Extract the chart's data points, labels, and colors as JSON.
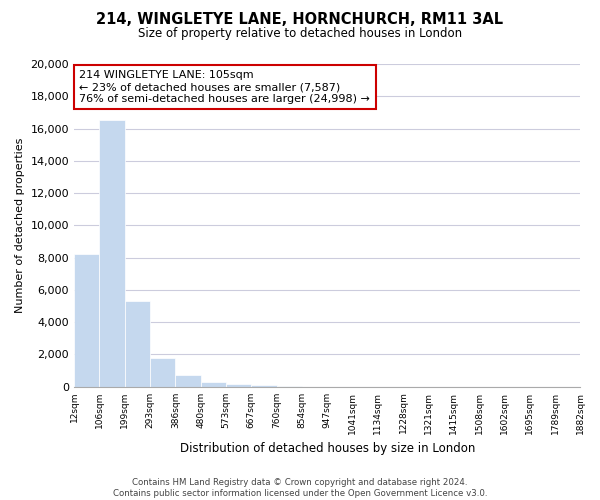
{
  "title": "214, WINGLETYE LANE, HORNCHURCH, RM11 3AL",
  "subtitle": "Size of property relative to detached houses in London",
  "xlabel": "Distribution of detached houses by size in London",
  "ylabel": "Number of detached properties",
  "bar_values": [
    8200,
    16500,
    5300,
    1750,
    750,
    280,
    150,
    100,
    50,
    0,
    0,
    0,
    0,
    0,
    0,
    0,
    0,
    0,
    0,
    0
  ],
  "bin_labels": [
    "12sqm",
    "106sqm",
    "199sqm",
    "293sqm",
    "386sqm",
    "480sqm",
    "573sqm",
    "667sqm",
    "760sqm",
    "854sqm",
    "947sqm",
    "1041sqm",
    "1134sqm",
    "1228sqm",
    "1321sqm",
    "1415sqm",
    "1508sqm",
    "1602sqm",
    "1695sqm",
    "1789sqm",
    "1882sqm"
  ],
  "bar_color": "#c5d8ee",
  "highlight_bar_index": 1,
  "highlight_color_edge": "#dd0000",
  "annotation_box_text": "214 WINGLETYE LANE: 105sqm\n← 23% of detached houses are smaller (7,587)\n76% of semi-detached houses are larger (24,998) →",
  "annotation_box_facecolor": "white",
  "annotation_box_edgecolor": "#cc0000",
  "ylim": [
    0,
    20000
  ],
  "yticks": [
    0,
    2000,
    4000,
    6000,
    8000,
    10000,
    12000,
    14000,
    16000,
    18000,
    20000
  ],
  "grid_color": "#ccccdd",
  "background_color": "white",
  "footer_line1": "Contains HM Land Registry data © Crown copyright and database right 2024.",
  "footer_line2": "Contains public sector information licensed under the Open Government Licence v3.0.",
  "figsize": [
    6.0,
    5.0
  ],
  "dpi": 100
}
